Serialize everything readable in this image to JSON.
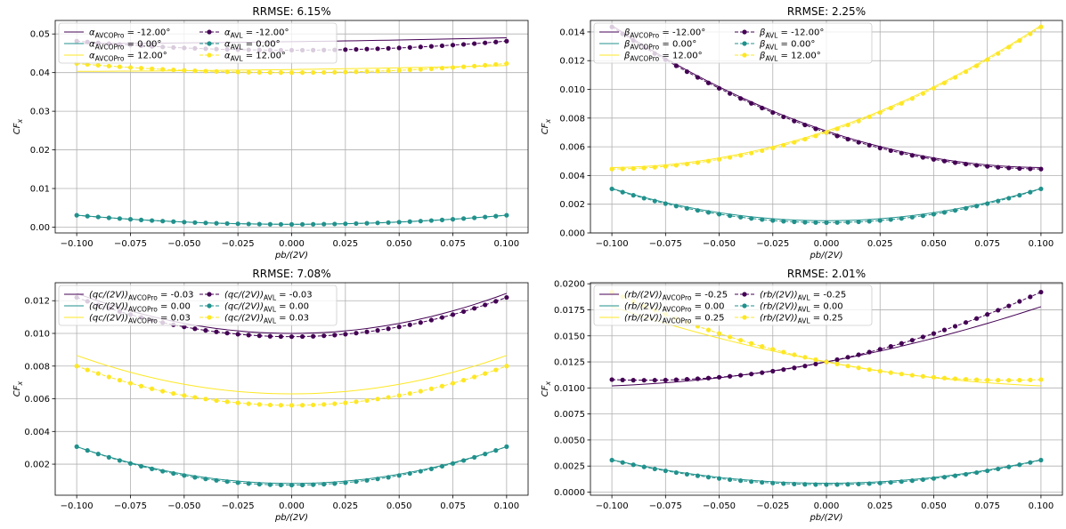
{
  "colors": {
    "purple": "#440154",
    "teal": "#21918c",
    "yellow": "#fde725",
    "grid": "#b0b0b0"
  },
  "chart_data": [
    {
      "type": "line",
      "title": "RRMSE: 6.15%",
      "xlabel": "pb/(2V)",
      "ylabel": "CF_x",
      "xlim": [
        -0.11,
        0.11
      ],
      "ylim": [
        -0.0015,
        0.0535
      ],
      "xticks": [
        -0.1,
        -0.075,
        -0.05,
        -0.025,
        0.0,
        0.025,
        0.05,
        0.075,
        0.1
      ],
      "xtick_labels": [
        "−0.100",
        "−0.075",
        "−0.050",
        "−0.025",
        "0.000",
        "0.025",
        "0.050",
        "0.075",
        "0.100"
      ],
      "yticks": [
        0.0,
        0.01,
        0.02,
        0.03,
        0.04,
        0.05
      ],
      "ytick_labels": [
        "0.00",
        "0.01",
        "0.02",
        "0.03",
        "0.04",
        "0.05"
      ],
      "grid": true,
      "legend_position": "top-left",
      "series": [
        {
          "name": "α_AVCOPro = -12.00°",
          "legend": [
            "α",
            "AVCOPro",
            " = -12.00°"
          ],
          "style": "line",
          "color": "#440154",
          "quad": [
            0.048,
            0.0075,
            0.0265
          ]
        },
        {
          "name": "α_AVCOPro = 0.00°",
          "legend": [
            "α",
            "AVCOPro",
            " = 0.00°"
          ],
          "style": "line",
          "color": "#21918c",
          "quad": [
            0.00075,
            0.0,
            0.235
          ]
        },
        {
          "name": "α_AVCOPro = 12.00°",
          "legend": [
            "α",
            "AVCOPro",
            " = 12.00°"
          ],
          "style": "line",
          "color": "#fde725",
          "quad": [
            0.0408,
            0.0075,
            0.0265
          ]
        },
        {
          "name": "α_AVL = -12.00°",
          "legend": [
            "α",
            "AVL",
            " = -12.00°"
          ],
          "style": "marker",
          "color": "#440154",
          "quad": [
            0.0458,
            0.0,
            0.235
          ]
        },
        {
          "name": "α_AVL = 0.00°",
          "legend": [
            "α",
            "AVL",
            " = 0.00°"
          ],
          "style": "marker",
          "color": "#21918c",
          "quad": [
            0.00072,
            0.0,
            0.235
          ]
        },
        {
          "name": "α_AVL = 12.00°",
          "legend": [
            "α",
            "AVL",
            " = 12.00°"
          ],
          "style": "marker",
          "color": "#fde725",
          "quad": [
            0.04,
            0.0,
            0.235
          ]
        }
      ]
    },
    {
      "type": "line",
      "title": "RRMSE: 2.25%",
      "xlabel": "pb/(2V)",
      "ylabel": "CF_x",
      "xlim": [
        -0.11,
        0.11
      ],
      "ylim": [
        0.0,
        0.0148
      ],
      "xticks": [
        -0.1,
        -0.075,
        -0.05,
        -0.025,
        0.0,
        0.025,
        0.05,
        0.075,
        0.1
      ],
      "xtick_labels": [
        "−0.100",
        "−0.075",
        "−0.050",
        "−0.025",
        "0.000",
        "0.025",
        "0.050",
        "0.075",
        "0.100"
      ],
      "yticks": [
        0.0,
        0.002,
        0.004,
        0.006,
        0.008,
        0.01,
        0.012,
        0.014
      ],
      "ytick_labels": [
        "0.000",
        "0.002",
        "0.004",
        "0.006",
        "0.008",
        "0.010",
        "0.012",
        "0.014"
      ],
      "grid": true,
      "legend_position": "top-left",
      "series": [
        {
          "name": "β_AVCOPro = -12.00°",
          "legend": [
            "β",
            "AVCOPro",
            " = -12.00°"
          ],
          "style": "line",
          "color": "#440154",
          "quad": [
            0.0071,
            -0.0495,
            0.24
          ]
        },
        {
          "name": "β_AVCOPro = 0.00°",
          "legend": [
            "β",
            "AVCOPro",
            " = 0.00°"
          ],
          "style": "line",
          "color": "#21918c",
          "quad": [
            0.00085,
            0.0,
            0.225
          ]
        },
        {
          "name": "β_AVCOPro = 12.00°",
          "legend": [
            "β",
            "AVCOPro",
            " = 12.00°"
          ],
          "style": "line",
          "color": "#fde725",
          "quad": [
            0.0071,
            0.0495,
            0.24
          ]
        },
        {
          "name": "β_AVL = -12.00°",
          "legend": [
            "β",
            "AVL",
            " = -12.00°"
          ],
          "style": "marker",
          "color": "#440154",
          "quad": [
            0.007,
            -0.0495,
            0.24
          ]
        },
        {
          "name": "β_AVL = 0.00°",
          "legend": [
            "β",
            "AVL",
            " = 0.00°"
          ],
          "style": "marker",
          "color": "#21918c",
          "quad": [
            0.00072,
            0.0,
            0.235
          ]
        },
        {
          "name": "β_AVL = 12.00°",
          "legend": [
            "β",
            "AVL",
            " = 12.00°"
          ],
          "style": "marker",
          "color": "#fde725",
          "quad": [
            0.007,
            0.0495,
            0.24
          ]
        }
      ]
    },
    {
      "type": "line",
      "title": "RRMSE: 7.08%",
      "xlabel": "pb/(2V)",
      "ylabel": "CF_x",
      "xlim": [
        -0.11,
        0.11
      ],
      "ylim": [
        0.0001,
        0.0131
      ],
      "xticks": [
        -0.1,
        -0.075,
        -0.05,
        -0.025,
        0.0,
        0.025,
        0.05,
        0.075,
        0.1
      ],
      "xtick_labels": [
        "−0.100",
        "−0.075",
        "−0.050",
        "−0.025",
        "0.000",
        "0.025",
        "0.050",
        "0.075",
        "0.100"
      ],
      "yticks": [
        0.002,
        0.004,
        0.006,
        0.008,
        0.01,
        0.012
      ],
      "ytick_labels": [
        "0.002",
        "0.004",
        "0.006",
        "0.008",
        "0.010",
        "0.012"
      ],
      "grid": true,
      "legend_position": "top-left",
      "series": [
        {
          "name": "(qc/(2V))_AVCOPro = -0.03",
          "legend": [
            "(qc/(2V))",
            "AVCOPro",
            " = -0.03"
          ],
          "style": "line",
          "color": "#440154",
          "quad": [
            0.01,
            0.0,
            0.245
          ]
        },
        {
          "name": "(qc/(2V))_AVCOPro = 0.00",
          "legend": [
            "(qc/(2V))",
            "AVCOPro",
            " = 0.00"
          ],
          "style": "line",
          "color": "#21918c",
          "quad": [
            0.00082,
            0.0,
            0.225
          ]
        },
        {
          "name": "(qc/(2V))_AVCOPro = 0.03",
          "legend": [
            "(qc/(2V))",
            "AVCOPro",
            " = 0.03"
          ],
          "style": "line",
          "color": "#fde725",
          "quad": [
            0.0063,
            0.0,
            0.235
          ]
        },
        {
          "name": "(qc/(2V))_AVL = -0.03",
          "legend": [
            "(qc/(2V))",
            "AVL",
            " = -0.03"
          ],
          "style": "marker",
          "color": "#440154",
          "quad": [
            0.0098,
            0.0,
            0.24
          ]
        },
        {
          "name": "(qc/(2V))_AVL = 0.00",
          "legend": [
            "(qc/(2V))",
            "AVL",
            " = 0.00"
          ],
          "style": "marker",
          "color": "#21918c",
          "quad": [
            0.00072,
            0.0,
            0.235
          ]
        },
        {
          "name": "(qc/(2V))_AVL = 0.03",
          "legend": [
            "(qc/(2V))",
            "AVL",
            " = 0.03"
          ],
          "style": "marker",
          "color": "#fde725",
          "quad": [
            0.0056,
            0.0,
            0.24
          ]
        }
      ]
    },
    {
      "type": "line",
      "title": "RRMSE: 2.01%",
      "xlabel": "pb/(2V)",
      "ylabel": "CF_x",
      "xlim": [
        -0.11,
        0.11
      ],
      "ylim": [
        -0.0003,
        0.0201
      ],
      "xticks": [
        -0.1,
        -0.075,
        -0.05,
        -0.025,
        0.0,
        0.025,
        0.05,
        0.075,
        0.1
      ],
      "xtick_labels": [
        "−0.100",
        "−0.075",
        "−0.050",
        "−0.025",
        "0.000",
        "0.025",
        "0.050",
        "0.075",
        "0.100"
      ],
      "yticks": [
        0.0,
        0.0025,
        0.005,
        0.0075,
        0.01,
        0.0125,
        0.015,
        0.0175,
        0.02
      ],
      "ytick_labels": [
        "0.0000",
        "0.0025",
        "0.0050",
        "0.0075",
        "0.0100",
        "0.0125",
        "0.0150",
        "0.0175",
        "0.0200"
      ],
      "grid": true,
      "legend_position": "top-left",
      "series": [
        {
          "name": "(rb/(2V))_AVCOPro = -0.25",
          "legend": [
            "(rb/(2V))",
            "AVCOPro",
            " = -0.25"
          ],
          "style": "line",
          "color": "#440154",
          "quad": [
            0.0125,
            0.038,
            0.15
          ]
        },
        {
          "name": "(rb/(2V))_AVCOPro = 0.00",
          "legend": [
            "(rb/(2V))",
            "AVCOPro",
            " = 0.00"
          ],
          "style": "line",
          "color": "#21918c",
          "quad": [
            0.00085,
            0.0,
            0.225
          ]
        },
        {
          "name": "(rb/(2V))_AVCOPro = 0.25",
          "legend": [
            "(rb/(2V))",
            "AVCOPro",
            " = 0.25"
          ],
          "style": "line",
          "color": "#fde725",
          "quad": [
            0.0125,
            -0.038,
            0.15
          ]
        },
        {
          "name": "(rb/(2V))_AVL = -0.25",
          "legend": [
            "(rb/(2V))",
            "AVL",
            " = -0.25"
          ],
          "style": "marker",
          "color": "#440154",
          "quad": [
            0.0125,
            0.042,
            0.25
          ]
        },
        {
          "name": "(rb/(2V))_AVL = 0.00",
          "legend": [
            "(rb/(2V))",
            "AVL",
            " = 0.00"
          ],
          "style": "marker",
          "color": "#21918c",
          "quad": [
            0.00072,
            0.0,
            0.235
          ]
        },
        {
          "name": "(rb/(2V))_AVL = 0.25",
          "legend": [
            "(rb/(2V))",
            "AVL",
            " = 0.25"
          ],
          "style": "marker",
          "color": "#fde725",
          "quad": [
            0.0125,
            -0.042,
            0.25
          ]
        }
      ]
    }
  ]
}
